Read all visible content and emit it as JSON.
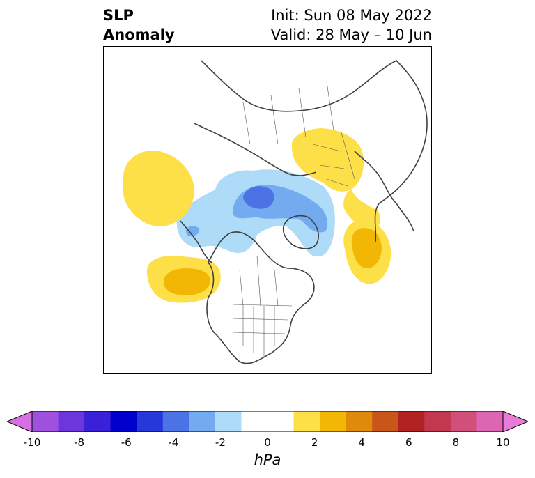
{
  "title": {
    "left_line1": "SLP",
    "left_line2": "Anomaly",
    "right_line1": "Init: Sun 08 May 2022",
    "right_line2": "Valid: 28 May – 10 Jun"
  },
  "colorbar": {
    "label": "hPa",
    "ticks": [
      "-10",
      "-8",
      "-6",
      "-4",
      "-2",
      "0",
      "2",
      "4",
      "6",
      "8",
      "10"
    ],
    "colors": [
      "#d670e0",
      "#9f50df",
      "#6b36dc",
      "#3a20d8",
      "#0000cc",
      "#2638d9",
      "#4c73e6",
      "#74aaf0",
      "#aedbf7",
      "#ffffff",
      "#ffffff",
      "#fde047",
      "#f2b705",
      "#e08a0c",
      "#c8561a",
      "#b22222",
      "#c2384e",
      "#d0507a",
      "#dc66b2",
      "#e87ad8"
    ]
  },
  "map": {
    "projection": "north-polar-stereographic",
    "features": [
      {
        "name": "negative anomaly over Arctic Ocean / Greenland-Barents",
        "level": "-3 to -1 hPa"
      },
      {
        "name": "positive anomaly over North Pacific / Gulf of Alaska",
        "level": "1 to 3 hPa"
      },
      {
        "name": "positive anomaly over North Atlantic",
        "level": "1 to 3 hPa"
      },
      {
        "name": "positive anomaly over central Siberia",
        "level": "1 to 2 hPa"
      },
      {
        "name": "positive anomaly over western Europe",
        "level": "1 to 2 hPa"
      }
    ]
  }
}
